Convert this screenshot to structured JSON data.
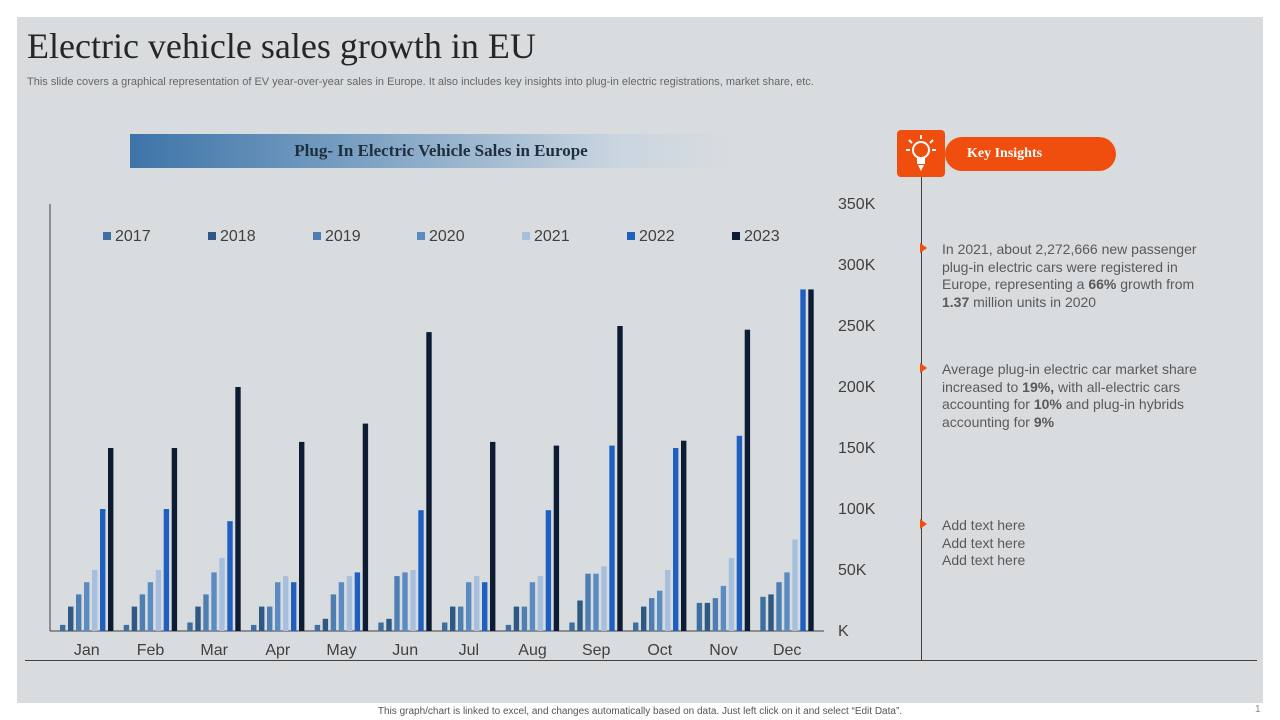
{
  "title": "Electric vehicle sales growth in EU",
  "subtitle": "This slide covers a graphical representation of EV year-over-year sales in Europe. It also includes key insights into plug-in electric registrations, market share, etc.",
  "key_insights": {
    "heading": "Key Insights",
    "icon": "lightbulb-icon",
    "items": [
      {
        "pre": "In 2021, about 2,272,666 new passenger plug-in electric cars were registered in Europe, representing a ",
        "b1": "66%",
        "mid": " growth from ",
        "b2": "1.37",
        "post": " million units in 2020"
      },
      {
        "pre": "Average plug-in electric car market share increased to ",
        "b1": "19%,",
        "mid": " with all-electric cars accounting for ",
        "b2": "10%",
        "mid2": " and plug-in hybrids accounting for ",
        "b3": "9%"
      },
      {
        "lines": [
          "Add text here",
          "Add text here",
          "Add text here"
        ]
      }
    ]
  },
  "footer_note": "This graph/chart is linked to excel, and changes automatically based on data. Just left click on it and select “Edit Data”.",
  "page_number": "1",
  "colors": {
    "accent": "#f04e0f",
    "background": "#d8dcdf"
  },
  "chart_data": {
    "type": "bar",
    "title": "Plug- In Electric Vehicle Sales in Europe",
    "categories": [
      "Jan",
      "Feb",
      "Mar",
      "Apr",
      "May",
      "Jun",
      "Jul",
      "Aug",
      "Sep",
      "Oct",
      "Nov",
      "Dec"
    ],
    "yticks": [
      "K",
      "50K",
      "100K",
      "150K",
      "200K",
      "250K",
      "300K",
      "350K"
    ],
    "ylim": [
      0,
      350
    ],
    "xlabel": "",
    "ylabel": "",
    "legend_position": "top",
    "series": [
      {
        "name": "2017",
        "color": "#3f6fa0",
        "values": [
          5,
          5,
          7,
          5,
          5,
          7,
          7,
          5,
          7,
          7,
          23,
          28
        ]
      },
      {
        "name": "2018",
        "color": "#2f5882",
        "values": [
          20,
          20,
          20,
          20,
          10,
          10,
          20,
          20,
          25,
          20,
          23,
          30
        ]
      },
      {
        "name": "2019",
        "color": "#4f7fb2",
        "values": [
          30,
          30,
          30,
          20,
          30,
          45,
          20,
          20,
          47,
          27,
          27,
          40
        ]
      },
      {
        "name": "2020",
        "color": "#5a8cc2",
        "values": [
          40,
          40,
          48,
          40,
          40,
          48,
          40,
          40,
          47,
          33,
          37,
          48
        ]
      },
      {
        "name": "2021",
        "color": "#a7bfdc",
        "values": [
          50,
          50,
          60,
          45,
          45,
          50,
          45,
          45,
          53,
          50,
          60,
          75
        ]
      },
      {
        "name": "2022",
        "color": "#1f5fc0",
        "values": [
          100,
          100,
          90,
          40,
          48,
          99,
          40,
          99,
          152,
          150,
          160,
          280
        ]
      },
      {
        "name": "2023",
        "color": "#0e1c33",
        "values": [
          150,
          150,
          200,
          155,
          170,
          245,
          155,
          152,
          250,
          156,
          247,
          280
        ]
      }
    ]
  }
}
